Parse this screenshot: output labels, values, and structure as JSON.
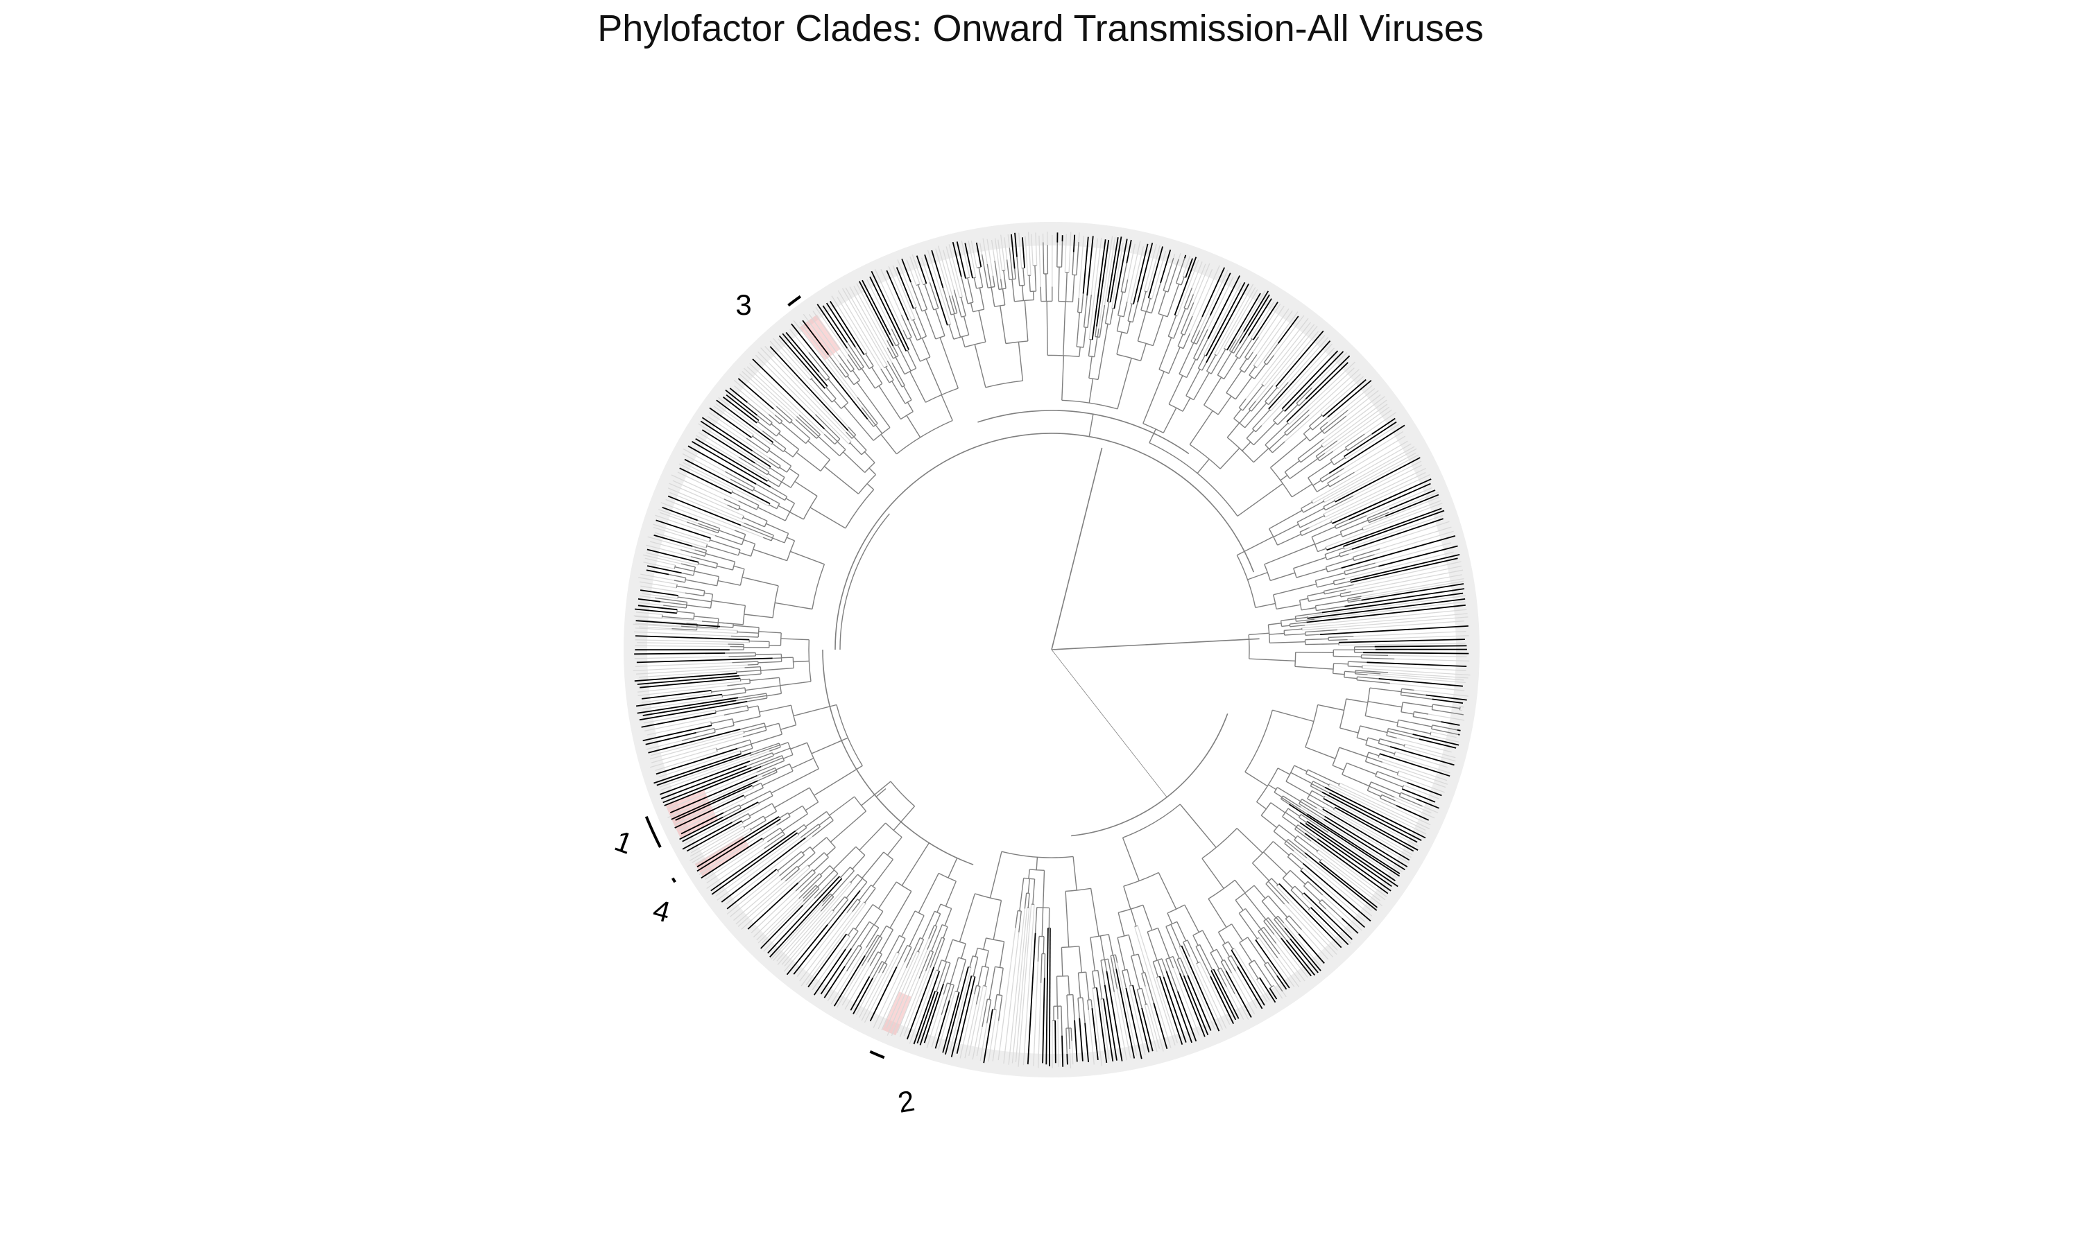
{
  "figure": {
    "title": "Phylofactor Clades: Onward Transmission-All Viruses"
  },
  "tree": {
    "layout": "circular",
    "branch_color": "#7f7f7f",
    "tip_dark_color": "#000000",
    "tip_light_color": "#d9d9d9",
    "highlight_color": "#f4b6b6"
  },
  "clades": [
    {
      "id": "1",
      "label": "1"
    },
    {
      "id": "2",
      "label": "2"
    },
    {
      "id": "3",
      "label": "3"
    },
    {
      "id": "4",
      "label": "4"
    }
  ]
}
